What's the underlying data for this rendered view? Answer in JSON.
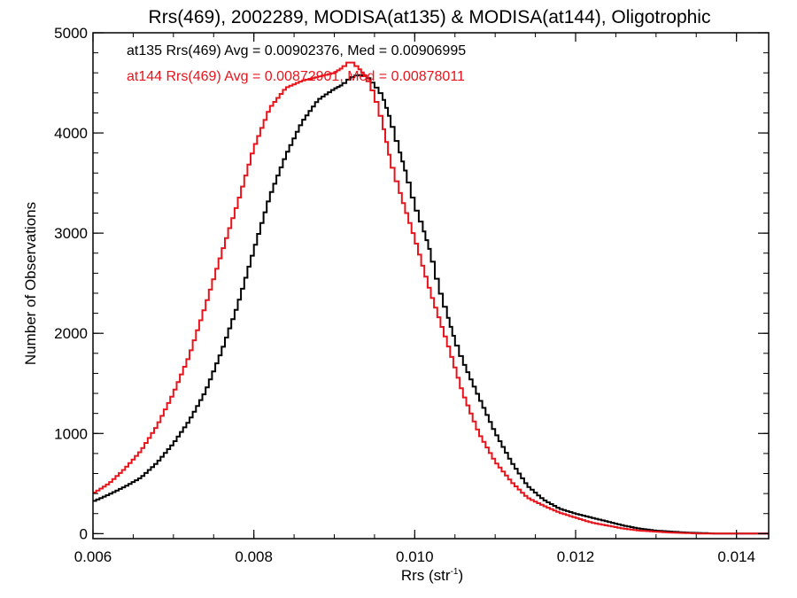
{
  "chart_data": {
    "type": "line",
    "title": "Rrs(469), 2002289, MODISA(at135) & MODISA(at144), Oligotrophic",
    "xlabel_main": "Rrs (str",
    "xlabel_sup": "-1",
    "xlabel_close": ")",
    "ylabel": "Number of Observations",
    "xlim": [
      0.006,
      0.0144
    ],
    "ylim": [
      -50,
      5000
    ],
    "x_ticks": [
      0.006,
      0.008,
      0.01,
      0.012,
      0.014
    ],
    "x_tick_labels": [
      "0.006",
      "0.008",
      "0.010",
      "0.012",
      "0.014"
    ],
    "y_ticks": [
      0,
      1000,
      2000,
      3000,
      4000,
      5000
    ],
    "y_tick_labels": [
      "0",
      "1000",
      "2000",
      "3000",
      "4000",
      "5000"
    ],
    "x_minor_step": 0.0005,
    "y_minor_step": 200,
    "grid": false,
    "legend_position": "top-left",
    "series": [
      {
        "name": "at135 Rrs(469) Avg = 0.00902376, Med = 0.00906995",
        "color": "#000000",
        "x": [
          0.006,
          0.0062,
          0.0064,
          0.0066,
          0.0068,
          0.007,
          0.0072,
          0.0074,
          0.0076,
          0.0078,
          0.008,
          0.0082,
          0.0084,
          0.0086,
          0.0088,
          0.009,
          0.0091,
          0.0092,
          0.0093,
          0.0094,
          0.0095,
          0.0096,
          0.0097,
          0.0098,
          0.0099,
          0.01,
          0.0101,
          0.0102,
          0.0103,
          0.0104,
          0.0105,
          0.0106,
          0.0108,
          0.011,
          0.0112,
          0.0114,
          0.0116,
          0.0118,
          0.012,
          0.0122,
          0.0124,
          0.0126,
          0.0128,
          0.013,
          0.0132,
          0.0134,
          0.0136,
          0.0138,
          0.014,
          0.0142,
          0.0144
        ],
        "y": [
          320,
          390,
          470,
          560,
          710,
          900,
          1130,
          1420,
          1820,
          2280,
          2830,
          3370,
          3780,
          4110,
          4330,
          4440,
          4480,
          4550,
          4580,
          4570,
          4480,
          4370,
          4130,
          3850,
          3580,
          3280,
          3060,
          2800,
          2460,
          2200,
          1930,
          1720,
          1360,
          1010,
          720,
          480,
          340,
          250,
          200,
          160,
          120,
          80,
          50,
          30,
          20,
          10,
          5,
          0,
          0,
          0,
          0
        ]
      },
      {
        "name": "at144 Rrs(469) Avg = 0.00872901, Med = 0.00878011",
        "color": "#e8141b",
        "x": [
          0.006,
          0.0062,
          0.0064,
          0.0066,
          0.0068,
          0.007,
          0.0072,
          0.0074,
          0.0076,
          0.0078,
          0.008,
          0.0082,
          0.0084,
          0.0086,
          0.0088,
          0.009,
          0.0091,
          0.0092,
          0.0093,
          0.0094,
          0.0095,
          0.0096,
          0.0097,
          0.0098,
          0.01,
          0.0102,
          0.0104,
          0.0106,
          0.0108,
          0.011,
          0.0112,
          0.0114,
          0.0116,
          0.0118,
          0.012,
          0.0122,
          0.0124,
          0.0126,
          0.0128,
          0.013,
          0.0132,
          0.0134,
          0.0136,
          0.0138,
          0.014,
          0.0142,
          0.0144
        ],
        "y": [
          400,
          500,
          650,
          830,
          1080,
          1400,
          1780,
          2280,
          2800,
          3300,
          3850,
          4250,
          4450,
          4520,
          4560,
          4600,
          4650,
          4720,
          4650,
          4560,
          4380,
          4100,
          3720,
          3450,
          2950,
          2400,
          1920,
          1400,
          1000,
          720,
          520,
          360,
          280,
          210,
          160,
          110,
          80,
          50,
          30,
          20,
          10,
          5,
          0,
          0,
          0,
          0,
          0
        ]
      }
    ]
  }
}
